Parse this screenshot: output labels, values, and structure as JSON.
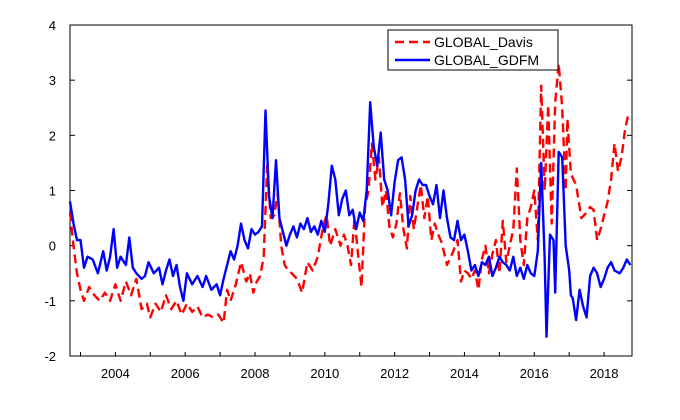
{
  "chart_data": {
    "type": "line",
    "title": "",
    "xlabel": "",
    "ylabel": "",
    "xlim": [
      2002.7,
      2018.8
    ],
    "ylim": [
      -2,
      4
    ],
    "x_ticks": [
      2004,
      2006,
      2008,
      2010,
      2012,
      2014,
      2016,
      2018
    ],
    "x_tick_labels": [
      "2004",
      "2006",
      "2008",
      "2010",
      "2012",
      "2014",
      "2016",
      "2018"
    ],
    "y_ticks": [
      -2,
      -1,
      0,
      1,
      2,
      3,
      4
    ],
    "y_tick_labels": [
      "-2",
      "-1",
      "0",
      "1",
      "2",
      "3",
      "4"
    ],
    "legend_position": "top-right",
    "grid": false,
    "series": [
      {
        "name": "GLOBAL_Davis",
        "color": "#ff0000",
        "style": "dashed",
        "points": [
          [
            2002.7,
            0.6
          ],
          [
            2002.8,
            0.0
          ],
          [
            2002.9,
            -0.5
          ],
          [
            2003.0,
            -0.8
          ],
          [
            2003.1,
            -1.0
          ],
          [
            2003.25,
            -0.75
          ],
          [
            2003.4,
            -0.9
          ],
          [
            2003.55,
            -1.0
          ],
          [
            2003.7,
            -0.85
          ],
          [
            2003.85,
            -1.0
          ],
          [
            2004.0,
            -0.7
          ],
          [
            2004.15,
            -1.0
          ],
          [
            2004.3,
            -0.65
          ],
          [
            2004.45,
            -0.9
          ],
          [
            2004.6,
            -0.6
          ],
          [
            2004.75,
            -1.15
          ],
          [
            2004.9,
            -1.05
          ],
          [
            2005.0,
            -1.3
          ],
          [
            2005.15,
            -1.05
          ],
          [
            2005.3,
            -1.2
          ],
          [
            2005.45,
            -0.9
          ],
          [
            2005.6,
            -1.15
          ],
          [
            2005.75,
            -1.0
          ],
          [
            2005.9,
            -1.25
          ],
          [
            2006.05,
            -1.05
          ],
          [
            2006.2,
            -1.2
          ],
          [
            2006.35,
            -1.1
          ],
          [
            2006.5,
            -1.3
          ],
          [
            2006.65,
            -1.25
          ],
          [
            2006.8,
            -1.3
          ],
          [
            2006.95,
            -1.25
          ],
          [
            2007.1,
            -1.4
          ],
          [
            2007.2,
            -0.8
          ],
          [
            2007.3,
            -1.0
          ],
          [
            2007.45,
            -0.7
          ],
          [
            2007.6,
            -0.3
          ],
          [
            2007.75,
            -0.65
          ],
          [
            2007.85,
            -0.5
          ],
          [
            2007.95,
            -0.85
          ],
          [
            2008.05,
            -0.65
          ],
          [
            2008.15,
            -0.55
          ],
          [
            2008.25,
            -0.2
          ],
          [
            2008.35,
            1.45
          ],
          [
            2008.45,
            0.5
          ],
          [
            2008.55,
            0.55
          ],
          [
            2008.65,
            0.95
          ],
          [
            2008.75,
            0.0
          ],
          [
            2008.85,
            -0.35
          ],
          [
            2008.95,
            -0.45
          ],
          [
            2009.05,
            -0.5
          ],
          [
            2009.2,
            -0.6
          ],
          [
            2009.35,
            -0.85
          ],
          [
            2009.5,
            -0.3
          ],
          [
            2009.65,
            -0.45
          ],
          [
            2009.8,
            -0.2
          ],
          [
            2009.95,
            0.35
          ],
          [
            2010.05,
            0.55
          ],
          [
            2010.15,
            0.0
          ],
          [
            2010.3,
            0.3
          ],
          [
            2010.45,
            0.0
          ],
          [
            2010.55,
            0.2
          ],
          [
            2010.65,
            0.0
          ],
          [
            2010.75,
            -0.35
          ],
          [
            2010.85,
            0.5
          ],
          [
            2010.95,
            -0.15
          ],
          [
            2011.05,
            -0.75
          ],
          [
            2011.15,
            0.7
          ],
          [
            2011.25,
            1.0
          ],
          [
            2011.35,
            1.85
          ],
          [
            2011.45,
            1.2
          ],
          [
            2011.55,
            1.6
          ],
          [
            2011.65,
            0.7
          ],
          [
            2011.75,
            1.0
          ],
          [
            2011.85,
            0.35
          ],
          [
            2011.95,
            0.15
          ],
          [
            2012.05,
            0.4
          ],
          [
            2012.15,
            0.95
          ],
          [
            2012.25,
            0.3
          ],
          [
            2012.35,
            -0.05
          ],
          [
            2012.45,
            0.9
          ],
          [
            2012.55,
            0.3
          ],
          [
            2012.65,
            0.7
          ],
          [
            2012.75,
            1.1
          ],
          [
            2012.85,
            0.5
          ],
          [
            2012.95,
            0.9
          ],
          [
            2013.05,
            0.1
          ],
          [
            2013.15,
            0.4
          ],
          [
            2013.25,
            0.2
          ],
          [
            2013.35,
            0.05
          ],
          [
            2013.5,
            -0.35
          ],
          [
            2013.65,
            -0.15
          ],
          [
            2013.8,
            0.1
          ],
          [
            2013.9,
            -0.65
          ],
          [
            2014.0,
            -0.45
          ],
          [
            2014.1,
            -0.5
          ],
          [
            2014.2,
            -0.6
          ],
          [
            2014.3,
            -0.45
          ],
          [
            2014.4,
            -0.8
          ],
          [
            2014.5,
            -0.25
          ],
          [
            2014.6,
            0.0
          ],
          [
            2014.7,
            -0.5
          ],
          [
            2014.8,
            -0.15
          ],
          [
            2014.9,
            0.1
          ],
          [
            2015.0,
            -0.5
          ],
          [
            2015.1,
            0.45
          ],
          [
            2015.2,
            -0.3
          ],
          [
            2015.3,
            0.0
          ],
          [
            2015.4,
            0.3
          ],
          [
            2015.5,
            1.4
          ],
          [
            2015.6,
            0.1
          ],
          [
            2015.7,
            -0.35
          ],
          [
            2015.8,
            0.5
          ],
          [
            2015.9,
            0.7
          ],
          [
            2016.0,
            1.0
          ],
          [
            2016.1,
            0.1
          ],
          [
            2016.2,
            2.9
          ],
          [
            2016.3,
            1.0
          ],
          [
            2016.4,
            2.55
          ],
          [
            2016.5,
            0.4
          ],
          [
            2016.6,
            2.6
          ],
          [
            2016.7,
            3.3
          ],
          [
            2016.8,
            2.5
          ],
          [
            2016.9,
            1.0
          ],
          [
            2016.95,
            2.3
          ],
          [
            2017.05,
            1.3
          ],
          [
            2017.2,
            1.1
          ],
          [
            2017.35,
            0.5
          ],
          [
            2017.5,
            0.6
          ],
          [
            2017.6,
            0.7
          ],
          [
            2017.7,
            0.65
          ],
          [
            2017.8,
            0.1
          ],
          [
            2017.9,
            0.3
          ],
          [
            2018.0,
            0.55
          ],
          [
            2018.1,
            0.8
          ],
          [
            2018.2,
            1.2
          ],
          [
            2018.3,
            1.85
          ],
          [
            2018.4,
            1.35
          ],
          [
            2018.5,
            1.6
          ],
          [
            2018.6,
            2.1
          ],
          [
            2018.7,
            2.4
          ]
        ]
      },
      {
        "name": "GLOBAL_GDFM",
        "color": "#0000ff",
        "style": "solid",
        "points": [
          [
            2002.7,
            0.8
          ],
          [
            2002.8,
            0.4
          ],
          [
            2002.9,
            0.1
          ],
          [
            2003.0,
            0.1
          ],
          [
            2003.1,
            -0.4
          ],
          [
            2003.2,
            -0.2
          ],
          [
            2003.35,
            -0.25
          ],
          [
            2003.5,
            -0.5
          ],
          [
            2003.65,
            -0.1
          ],
          [
            2003.75,
            -0.45
          ],
          [
            2003.85,
            -0.2
          ],
          [
            2003.95,
            0.3
          ],
          [
            2004.05,
            -0.4
          ],
          [
            2004.15,
            -0.2
          ],
          [
            2004.3,
            -0.35
          ],
          [
            2004.4,
            0.15
          ],
          [
            2004.5,
            -0.4
          ],
          [
            2004.6,
            -0.5
          ],
          [
            2004.75,
            -0.6
          ],
          [
            2004.85,
            -0.55
          ],
          [
            2004.95,
            -0.3
          ],
          [
            2005.1,
            -0.5
          ],
          [
            2005.25,
            -0.4
          ],
          [
            2005.35,
            -0.7
          ],
          [
            2005.45,
            -0.45
          ],
          [
            2005.55,
            -0.25
          ],
          [
            2005.65,
            -0.55
          ],
          [
            2005.75,
            -0.35
          ],
          [
            2005.85,
            -0.75
          ],
          [
            2005.95,
            -1.0
          ],
          [
            2006.05,
            -0.5
          ],
          [
            2006.2,
            -0.7
          ],
          [
            2006.35,
            -0.55
          ],
          [
            2006.5,
            -0.75
          ],
          [
            2006.6,
            -0.55
          ],
          [
            2006.75,
            -0.8
          ],
          [
            2006.9,
            -0.7
          ],
          [
            2007.0,
            -0.9
          ],
          [
            2007.1,
            -0.6
          ],
          [
            2007.2,
            -0.35
          ],
          [
            2007.3,
            -0.1
          ],
          [
            2007.4,
            -0.25
          ],
          [
            2007.5,
            0.0
          ],
          [
            2007.6,
            0.4
          ],
          [
            2007.7,
            0.1
          ],
          [
            2007.8,
            -0.05
          ],
          [
            2007.9,
            0.3
          ],
          [
            2008.0,
            0.2
          ],
          [
            2008.1,
            0.25
          ],
          [
            2008.2,
            0.35
          ],
          [
            2008.3,
            2.45
          ],
          [
            2008.4,
            0.9
          ],
          [
            2008.5,
            0.5
          ],
          [
            2008.6,
            1.55
          ],
          [
            2008.7,
            0.5
          ],
          [
            2008.8,
            0.25
          ],
          [
            2008.9,
            0.0
          ],
          [
            2009.0,
            0.2
          ],
          [
            2009.1,
            0.35
          ],
          [
            2009.2,
            0.15
          ],
          [
            2009.3,
            0.4
          ],
          [
            2009.4,
            0.3
          ],
          [
            2009.5,
            0.5
          ],
          [
            2009.6,
            0.25
          ],
          [
            2009.7,
            0.35
          ],
          [
            2009.8,
            0.2
          ],
          [
            2009.9,
            0.45
          ],
          [
            2010.0,
            0.25
          ],
          [
            2010.1,
            0.75
          ],
          [
            2010.2,
            1.45
          ],
          [
            2010.3,
            1.2
          ],
          [
            2010.4,
            0.55
          ],
          [
            2010.5,
            0.85
          ],
          [
            2010.6,
            1.0
          ],
          [
            2010.7,
            0.55
          ],
          [
            2010.8,
            0.65
          ],
          [
            2010.9,
            0.3
          ],
          [
            2011.0,
            0.6
          ],
          [
            2011.1,
            0.45
          ],
          [
            2011.2,
            1.0
          ],
          [
            2011.3,
            2.6
          ],
          [
            2011.4,
            1.8
          ],
          [
            2011.5,
            1.45
          ],
          [
            2011.6,
            2.05
          ],
          [
            2011.7,
            1.2
          ],
          [
            2011.8,
            1.0
          ],
          [
            2011.9,
            0.55
          ],
          [
            2012.0,
            1.15
          ],
          [
            2012.1,
            1.55
          ],
          [
            2012.2,
            1.6
          ],
          [
            2012.3,
            1.2
          ],
          [
            2012.4,
            0.35
          ],
          [
            2012.5,
            0.55
          ],
          [
            2012.6,
            1.0
          ],
          [
            2012.7,
            1.2
          ],
          [
            2012.8,
            1.1
          ],
          [
            2012.9,
            1.1
          ],
          [
            2013.0,
            0.9
          ],
          [
            2013.1,
            0.75
          ],
          [
            2013.2,
            1.1
          ],
          [
            2013.3,
            0.5
          ],
          [
            2013.4,
            1.0
          ],
          [
            2013.5,
            0.5
          ],
          [
            2013.6,
            0.15
          ],
          [
            2013.7,
            0.1
          ],
          [
            2013.8,
            0.45
          ],
          [
            2013.9,
            0.1
          ],
          [
            2014.0,
            0.2
          ],
          [
            2014.1,
            -0.1
          ],
          [
            2014.2,
            -0.45
          ],
          [
            2014.3,
            -0.35
          ],
          [
            2014.4,
            -0.55
          ],
          [
            2014.5,
            -0.3
          ],
          [
            2014.6,
            -0.35
          ],
          [
            2014.7,
            -0.2
          ],
          [
            2014.8,
            -0.55
          ],
          [
            2014.9,
            -0.4
          ],
          [
            2015.0,
            -0.2
          ],
          [
            2015.1,
            -0.3
          ],
          [
            2015.2,
            -0.35
          ],
          [
            2015.3,
            -0.45
          ],
          [
            2015.4,
            -0.2
          ],
          [
            2015.5,
            -0.55
          ],
          [
            2015.6,
            -0.4
          ],
          [
            2015.7,
            -0.6
          ],
          [
            2015.8,
            -0.35
          ],
          [
            2015.9,
            -0.5
          ],
          [
            2016.0,
            -0.55
          ],
          [
            2016.1,
            -0.1
          ],
          [
            2016.2,
            1.5
          ],
          [
            2016.3,
            -0.25
          ],
          [
            2016.35,
            -1.65
          ],
          [
            2016.45,
            0.2
          ],
          [
            2016.55,
            0.1
          ],
          [
            2016.6,
            -0.85
          ],
          [
            2016.7,
            1.7
          ],
          [
            2016.8,
            1.6
          ],
          [
            2016.9,
            0.0
          ],
          [
            2017.0,
            -0.45
          ],
          [
            2017.05,
            -0.9
          ],
          [
            2017.1,
            -0.95
          ],
          [
            2017.2,
            -1.35
          ],
          [
            2017.3,
            -0.8
          ],
          [
            2017.4,
            -1.1
          ],
          [
            2017.5,
            -1.3
          ],
          [
            2017.6,
            -0.55
          ],
          [
            2017.7,
            -0.4
          ],
          [
            2017.8,
            -0.5
          ],
          [
            2017.9,
            -0.75
          ],
          [
            2018.0,
            -0.6
          ],
          [
            2018.1,
            -0.4
          ],
          [
            2018.2,
            -0.3
          ],
          [
            2018.3,
            -0.45
          ],
          [
            2018.45,
            -0.5
          ],
          [
            2018.55,
            -0.4
          ],
          [
            2018.65,
            -0.25
          ],
          [
            2018.75,
            -0.35
          ]
        ]
      }
    ]
  }
}
